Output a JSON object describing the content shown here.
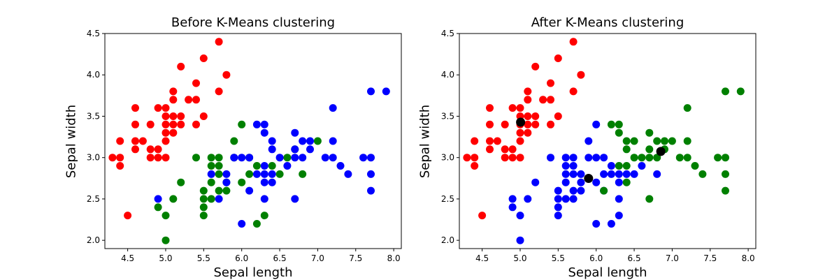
{
  "chart_data": [
    {
      "type": "scatter",
      "title": "Before K-Means clustering",
      "xlabel": "Sepal length",
      "ylabel": "Sepal width",
      "xlim": [
        4.2,
        8.1
      ],
      "ylim": [
        1.9,
        4.5
      ],
      "x_ticks": [
        "4.5",
        "5.0",
        "5.5",
        "6.0",
        "6.5",
        "7.0",
        "7.5",
        "8.0"
      ],
      "y_ticks": [
        "2.0",
        "2.5",
        "3.0",
        "3.5",
        "4.0",
        "4.5"
      ],
      "colors": {
        "red": "#ff0000",
        "green": "#008000",
        "blue": "#0000ff"
      },
      "series": [
        {
          "color": "#ff0000",
          "points": [
            [
              4.3,
              3.0
            ],
            [
              4.4,
              2.9
            ],
            [
              4.4,
              3.0
            ],
            [
              4.4,
              3.2
            ],
            [
              4.5,
              2.3
            ],
            [
              4.6,
              3.1
            ],
            [
              4.6,
              3.2
            ],
            [
              4.6,
              3.4
            ],
            [
              4.6,
              3.6
            ],
            [
              4.7,
              3.2
            ],
            [
              4.8,
              3.0
            ],
            [
              4.8,
              3.1
            ],
            [
              4.8,
              3.4
            ],
            [
              4.9,
              3.0
            ],
            [
              4.9,
              3.1
            ],
            [
              4.9,
              3.6
            ],
            [
              5.0,
              3.0
            ],
            [
              5.0,
              3.2
            ],
            [
              5.0,
              3.3
            ],
            [
              5.0,
              3.4
            ],
            [
              5.0,
              3.5
            ],
            [
              5.0,
              3.6
            ],
            [
              5.1,
              3.3
            ],
            [
              5.1,
              3.4
            ],
            [
              5.1,
              3.5
            ],
            [
              5.1,
              3.7
            ],
            [
              5.1,
              3.8
            ],
            [
              5.2,
              3.4
            ],
            [
              5.2,
              3.5
            ],
            [
              5.2,
              4.1
            ],
            [
              5.3,
              3.7
            ],
            [
              5.4,
              3.4
            ],
            [
              5.4,
              3.7
            ],
            [
              5.4,
              3.9
            ],
            [
              5.5,
              3.5
            ],
            [
              5.5,
              4.2
            ],
            [
              5.7,
              3.8
            ],
            [
              5.7,
              4.4
            ],
            [
              5.8,
              4.0
            ]
          ]
        },
        {
          "color": "#008000",
          "points": [
            [
              4.9,
              2.4
            ],
            [
              5.0,
              2.0
            ],
            [
              5.0,
              2.3
            ],
            [
              5.1,
              2.5
            ],
            [
              5.2,
              2.7
            ],
            [
              5.4,
              3.0
            ],
            [
              5.5,
              2.3
            ],
            [
              5.5,
              2.4
            ],
            [
              5.5,
              2.5
            ],
            [
              5.5,
              2.6
            ],
            [
              5.6,
              2.5
            ],
            [
              5.6,
              2.7
            ],
            [
              5.6,
              2.9
            ],
            [
              5.6,
              3.0
            ],
            [
              5.7,
              2.6
            ],
            [
              5.7,
              2.8
            ],
            [
              5.7,
              2.9
            ],
            [
              5.7,
              3.0
            ],
            [
              5.8,
              2.6
            ],
            [
              5.8,
              2.7
            ],
            [
              5.9,
              3.0
            ],
            [
              5.9,
              3.2
            ],
            [
              6.0,
              2.7
            ],
            [
              6.0,
              3.4
            ],
            [
              6.1,
              2.8
            ],
            [
              6.1,
              3.0
            ],
            [
              6.2,
              2.2
            ],
            [
              6.2,
              2.9
            ],
            [
              6.3,
              2.3
            ],
            [
              6.4,
              2.9
            ],
            [
              6.5,
              2.8
            ],
            [
              6.6,
              3.0
            ],
            [
              6.7,
              3.1
            ],
            [
              6.8,
              2.8
            ],
            [
              7.0,
              3.2
            ]
          ]
        },
        {
          "color": "#0000ff",
          "points": [
            [
              4.9,
              2.5
            ],
            [
              5.6,
              2.8
            ],
            [
              5.7,
              2.5
            ],
            [
              5.8,
              2.7
            ],
            [
              5.8,
              2.8
            ],
            [
              5.9,
              3.0
            ],
            [
              6.0,
              2.2
            ],
            [
              6.0,
              3.0
            ],
            [
              6.1,
              2.6
            ],
            [
              6.1,
              3.0
            ],
            [
              6.2,
              2.8
            ],
            [
              6.2,
              3.4
            ],
            [
              6.3,
              2.5
            ],
            [
              6.3,
              2.7
            ],
            [
              6.3,
              2.8
            ],
            [
              6.3,
              2.9
            ],
            [
              6.3,
              3.3
            ],
            [
              6.3,
              3.4
            ],
            [
              6.4,
              2.7
            ],
            [
              6.4,
              2.8
            ],
            [
              6.4,
              3.1
            ],
            [
              6.4,
              3.2
            ],
            [
              6.5,
              3.0
            ],
            [
              6.6,
              2.9
            ],
            [
              6.7,
              2.5
            ],
            [
              6.7,
              3.0
            ],
            [
              6.7,
              3.1
            ],
            [
              6.7,
              3.3
            ],
            [
              6.8,
              3.0
            ],
            [
              6.8,
              3.2
            ],
            [
              6.9,
              3.1
            ],
            [
              6.9,
              3.2
            ],
            [
              7.1,
              3.0
            ],
            [
              7.2,
              3.0
            ],
            [
              7.2,
              3.2
            ],
            [
              7.2,
              3.6
            ],
            [
              7.3,
              2.9
            ],
            [
              7.4,
              2.8
            ],
            [
              7.6,
              3.0
            ],
            [
              7.7,
              2.6
            ],
            [
              7.7,
              2.8
            ],
            [
              7.7,
              3.0
            ],
            [
              7.7,
              3.8
            ],
            [
              7.9,
              3.8
            ]
          ]
        }
      ]
    },
    {
      "type": "scatter",
      "title": "After K-Means clustering",
      "xlabel": "Sepal length",
      "ylabel": "Sepal width",
      "xlim": [
        4.2,
        8.1
      ],
      "ylim": [
        1.9,
        4.5
      ],
      "x_ticks": [
        "4.5",
        "5.0",
        "5.5",
        "6.0",
        "6.5",
        "7.0",
        "7.5",
        "8.0"
      ],
      "y_ticks": [
        "2.0",
        "2.5",
        "3.0",
        "3.5",
        "4.0",
        "4.5"
      ],
      "colors": {
        "red": "#ff0000",
        "green": "#008000",
        "blue": "#0000ff",
        "centroid": "#000000"
      },
      "series": [
        {
          "color": "#ff0000",
          "points": [
            [
              4.3,
              3.0
            ],
            [
              4.4,
              2.9
            ],
            [
              4.4,
              3.0
            ],
            [
              4.4,
              3.2
            ],
            [
              4.5,
              2.3
            ],
            [
              4.6,
              3.1
            ],
            [
              4.6,
              3.2
            ],
            [
              4.6,
              3.4
            ],
            [
              4.6,
              3.6
            ],
            [
              4.7,
              3.2
            ],
            [
              4.8,
              3.0
            ],
            [
              4.8,
              3.1
            ],
            [
              4.8,
              3.4
            ],
            [
              4.9,
              3.0
            ],
            [
              4.9,
              3.1
            ],
            [
              4.9,
              3.6
            ],
            [
              5.0,
              3.0
            ],
            [
              5.0,
              3.2
            ],
            [
              5.0,
              3.3
            ],
            [
              5.0,
              3.4
            ],
            [
              5.0,
              3.5
            ],
            [
              5.0,
              3.6
            ],
            [
              5.1,
              3.3
            ],
            [
              5.1,
              3.4
            ],
            [
              5.1,
              3.5
            ],
            [
              5.1,
              3.7
            ],
            [
              5.1,
              3.8
            ],
            [
              5.2,
              3.4
            ],
            [
              5.2,
              3.5
            ],
            [
              5.2,
              4.1
            ],
            [
              5.3,
              3.7
            ],
            [
              5.4,
              3.4
            ],
            [
              5.4,
              3.7
            ],
            [
              5.4,
              3.9
            ],
            [
              5.5,
              3.5
            ],
            [
              5.5,
              4.2
            ],
            [
              5.7,
              3.8
            ],
            [
              5.7,
              4.4
            ],
            [
              5.8,
              4.0
            ]
          ]
        },
        {
          "color": "#0000ff",
          "points": [
            [
              4.9,
              2.4
            ],
            [
              4.9,
              2.5
            ],
            [
              5.0,
              2.0
            ],
            [
              5.0,
              2.3
            ],
            [
              5.1,
              2.5
            ],
            [
              5.2,
              2.7
            ],
            [
              5.4,
              3.0
            ],
            [
              5.5,
              2.3
            ],
            [
              5.5,
              2.4
            ],
            [
              5.5,
              2.5
            ],
            [
              5.5,
              2.6
            ],
            [
              5.6,
              2.5
            ],
            [
              5.6,
              2.7
            ],
            [
              5.6,
              2.8
            ],
            [
              5.6,
              2.9
            ],
            [
              5.6,
              3.0
            ],
            [
              5.7,
              2.5
            ],
            [
              5.7,
              2.6
            ],
            [
              5.7,
              2.8
            ],
            [
              5.7,
              2.9
            ],
            [
              5.7,
              3.0
            ],
            [
              5.8,
              2.6
            ],
            [
              5.8,
              2.7
            ],
            [
              5.8,
              2.8
            ],
            [
              5.9,
              3.0
            ],
            [
              5.9,
              3.2
            ],
            [
              6.0,
              2.2
            ],
            [
              6.0,
              2.7
            ],
            [
              6.0,
              3.0
            ],
            [
              6.0,
              3.4
            ],
            [
              6.1,
              2.6
            ],
            [
              6.1,
              2.8
            ],
            [
              6.1,
              3.0
            ],
            [
              6.2,
              2.2
            ],
            [
              6.2,
              2.8
            ],
            [
              6.2,
              2.9
            ],
            [
              6.3,
              2.3
            ],
            [
              6.3,
              2.5
            ],
            [
              6.3,
              2.7
            ],
            [
              6.3,
              2.8
            ],
            [
              6.4,
              2.8
            ],
            [
              6.5,
              2.8
            ],
            [
              6.6,
              2.9
            ],
            [
              6.8,
              2.8
            ]
          ]
        },
        {
          "color": "#008000",
          "points": [
            [
              6.1,
              2.6
            ],
            [
              6.2,
              3.4
            ],
            [
              6.3,
              2.9
            ],
            [
              6.3,
              3.3
            ],
            [
              6.3,
              3.4
            ],
            [
              6.4,
              2.7
            ],
            [
              6.4,
              2.9
            ],
            [
              6.4,
              3.1
            ],
            [
              6.4,
              3.2
            ],
            [
              6.5,
              3.0
            ],
            [
              6.5,
              3.2
            ],
            [
              6.6,
              3.0
            ],
            [
              6.7,
              2.5
            ],
            [
              6.7,
              3.0
            ],
            [
              6.7,
              3.1
            ],
            [
              6.7,
              3.3
            ],
            [
              6.8,
              3.0
            ],
            [
              6.8,
              3.2
            ],
            [
              6.9,
              3.1
            ],
            [
              6.9,
              3.2
            ],
            [
              7.0,
              3.2
            ],
            [
              7.1,
              3.0
            ],
            [
              7.2,
              3.0
            ],
            [
              7.2,
              3.2
            ],
            [
              7.2,
              3.6
            ],
            [
              7.3,
              2.9
            ],
            [
              7.4,
              2.8
            ],
            [
              7.6,
              3.0
            ],
            [
              7.7,
              2.6
            ],
            [
              7.7,
              2.8
            ],
            [
              7.7,
              3.0
            ],
            [
              7.7,
              3.8
            ],
            [
              7.9,
              3.8
            ]
          ]
        },
        {
          "color": "#000000",
          "role": "centroids",
          "points": [
            [
              5.006,
              3.428
            ],
            [
              5.9,
              2.748
            ],
            [
              6.85,
              3.074
            ]
          ]
        }
      ]
    }
  ]
}
